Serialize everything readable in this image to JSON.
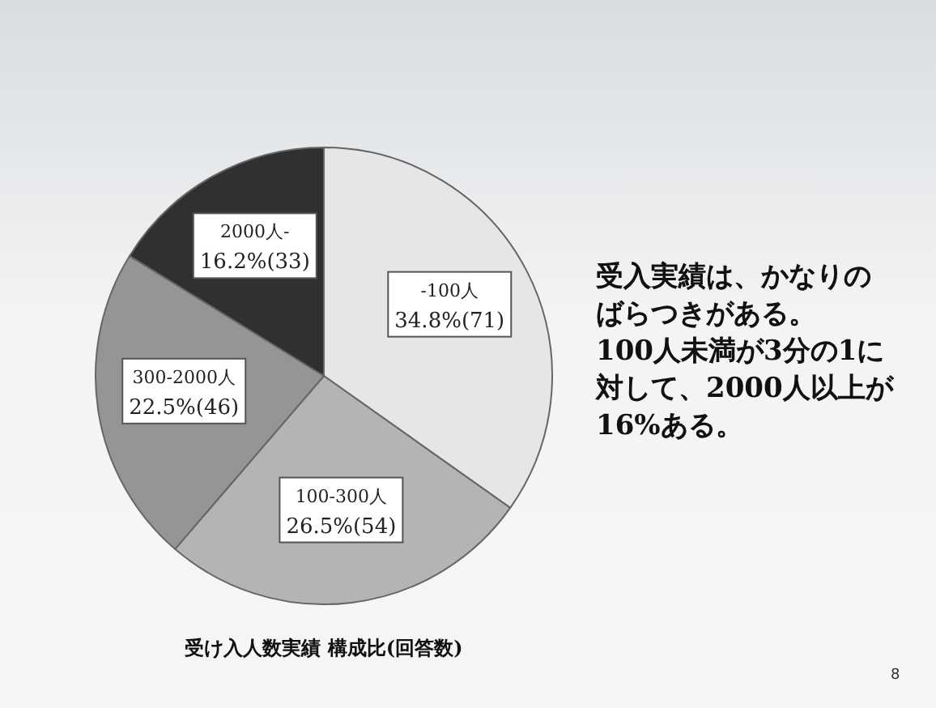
{
  "chart_data": {
    "type": "pie",
    "title": "受け入人数実績 構成比(回答数)",
    "categories": [
      "-100人",
      "100-300人",
      "300-2000人",
      "2000人-"
    ],
    "values": [
      34.8,
      26.5,
      22.5,
      16.2
    ],
    "value_labels": [
      "34.8%(71)",
      "26.5%(54)",
      "22.5%(46)",
      "16.2%(33)"
    ],
    "colors": [
      "#e6e6e6",
      "#b4b4b4",
      "#959595",
      "#303030"
    ],
    "annotations": [
      "受入実績は、かなりのばらつきがある。\n100人未満が3分の1に対して、2000人以上が16%ある。",
      "8"
    ]
  }
}
